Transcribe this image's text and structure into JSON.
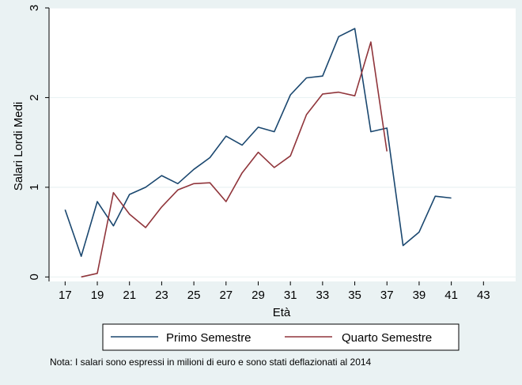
{
  "chart_data": {
    "type": "line",
    "title": "",
    "xlabel": "Età",
    "ylabel": "Salari Lordi Medi",
    "xlim": [
      16,
      45
    ],
    "ylim": [
      -0.05,
      3.0
    ],
    "x_ticks": [
      17,
      19,
      21,
      23,
      25,
      27,
      29,
      31,
      33,
      35,
      37,
      39,
      41,
      43
    ],
    "y_ticks": [
      0,
      1,
      2,
      3
    ],
    "grid": true,
    "legend_position": "bottom",
    "series": [
      {
        "name": "Primo Semestre",
        "color": "#1a476f",
        "x": [
          17,
          18,
          19,
          20,
          21,
          22,
          23,
          24,
          25,
          26,
          27,
          28,
          29,
          30,
          31,
          32,
          33,
          34,
          35,
          36,
          37,
          38,
          39,
          40,
          41
        ],
        "y": [
          0.75,
          0.23,
          0.84,
          0.57,
          0.92,
          1.0,
          1.13,
          1.04,
          1.2,
          1.33,
          1.57,
          1.47,
          1.67,
          1.62,
          2.03,
          2.22,
          2.24,
          2.68,
          2.77,
          1.62,
          1.66,
          0.35,
          0.5,
          0.9,
          0.88
        ]
      },
      {
        "name": "Quarto Semestre",
        "color": "#90353b",
        "x": [
          18,
          19,
          20,
          21,
          22,
          23,
          24,
          25,
          26,
          27,
          28,
          29,
          30,
          31,
          32,
          33,
          34,
          35,
          36,
          37
        ],
        "y": [
          0.0,
          0.04,
          0.94,
          0.7,
          0.55,
          0.78,
          0.97,
          1.04,
          1.05,
          0.84,
          1.16,
          1.39,
          1.22,
          1.35,
          1.81,
          2.04,
          2.06,
          2.02,
          2.62,
          1.4
        ]
      }
    ],
    "note": "Nota: I salari sono espressi in milioni di euro e sono stati deflazionati al 2014"
  }
}
